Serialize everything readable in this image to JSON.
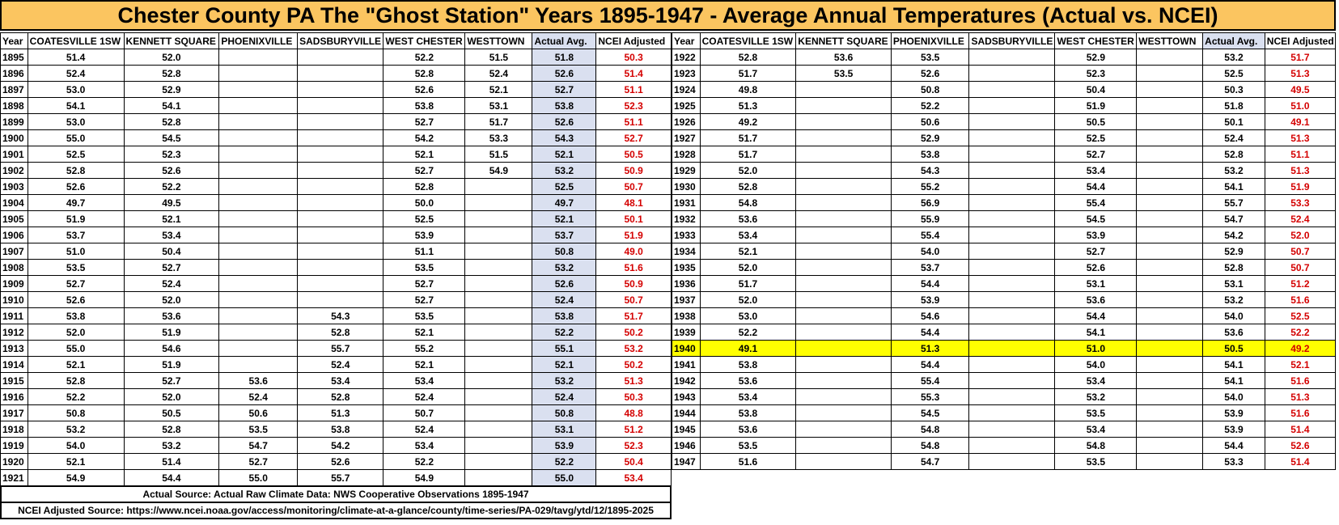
{
  "title": "Chester County PA The \"Ghost Station\" Years 1895-1947 - Average Annual Temperatures (Actual vs. NCEI)",
  "headers": [
    "Year",
    "COATESVILLE 1SW",
    "KENNETT SQUARE",
    "PHOENIXVILLE",
    "SADSBURYVILLE",
    "WEST CHESTER",
    "WESTTOWN",
    "Actual Avg.",
    "NCEI Adjusted"
  ],
  "left_rows": [
    [
      "1895",
      "51.4",
      "52.0",
      "",
      "",
      "52.2",
      "51.5",
      "51.8",
      "50.3"
    ],
    [
      "1896",
      "52.4",
      "52.8",
      "",
      "",
      "52.8",
      "52.4",
      "52.6",
      "51.4"
    ],
    [
      "1897",
      "53.0",
      "52.9",
      "",
      "",
      "52.6",
      "52.1",
      "52.7",
      "51.1"
    ],
    [
      "1898",
      "54.1",
      "54.1",
      "",
      "",
      "53.8",
      "53.1",
      "53.8",
      "52.3"
    ],
    [
      "1899",
      "53.0",
      "52.8",
      "",
      "",
      "52.7",
      "51.7",
      "52.6",
      "51.1"
    ],
    [
      "1900",
      "55.0",
      "54.5",
      "",
      "",
      "54.2",
      "53.3",
      "54.3",
      "52.7"
    ],
    [
      "1901",
      "52.5",
      "52.3",
      "",
      "",
      "52.1",
      "51.5",
      "52.1",
      "50.5"
    ],
    [
      "1902",
      "52.8",
      "52.6",
      "",
      "",
      "52.7",
      "54.9",
      "53.2",
      "50.9"
    ],
    [
      "1903",
      "52.6",
      "52.2",
      "",
      "",
      "52.8",
      "",
      "52.5",
      "50.7"
    ],
    [
      "1904",
      "49.7",
      "49.5",
      "",
      "",
      "50.0",
      "",
      "49.7",
      "48.1"
    ],
    [
      "1905",
      "51.9",
      "52.1",
      "",
      "",
      "52.5",
      "",
      "52.1",
      "50.1"
    ],
    [
      "1906",
      "53.7",
      "53.4",
      "",
      "",
      "53.9",
      "",
      "53.7",
      "51.9"
    ],
    [
      "1907",
      "51.0",
      "50.4",
      "",
      "",
      "51.1",
      "",
      "50.8",
      "49.0"
    ],
    [
      "1908",
      "53.5",
      "52.7",
      "",
      "",
      "53.5",
      "",
      "53.2",
      "51.6"
    ],
    [
      "1909",
      "52.7",
      "52.4",
      "",
      "",
      "52.7",
      "",
      "52.6",
      "50.9"
    ],
    [
      "1910",
      "52.6",
      "52.0",
      "",
      "",
      "52.7",
      "",
      "52.4",
      "50.7"
    ],
    [
      "1911",
      "53.8",
      "53.6",
      "",
      "54.3",
      "53.5",
      "",
      "53.8",
      "51.7"
    ],
    [
      "1912",
      "52.0",
      "51.9",
      "",
      "52.8",
      "52.1",
      "",
      "52.2",
      "50.2"
    ],
    [
      "1913",
      "55.0",
      "54.6",
      "",
      "55.7",
      "55.2",
      "",
      "55.1",
      "53.2"
    ],
    [
      "1914",
      "52.1",
      "51.9",
      "",
      "52.4",
      "52.1",
      "",
      "52.1",
      "50.2"
    ],
    [
      "1915",
      "52.8",
      "52.7",
      "53.6",
      "53.4",
      "53.4",
      "",
      "53.2",
      "51.3"
    ],
    [
      "1916",
      "52.2",
      "52.0",
      "52.4",
      "52.8",
      "52.4",
      "",
      "52.4",
      "50.3"
    ],
    [
      "1917",
      "50.8",
      "50.5",
      "50.6",
      "51.3",
      "50.7",
      "",
      "50.8",
      "48.8"
    ],
    [
      "1918",
      "53.2",
      "52.8",
      "53.5",
      "53.8",
      "52.4",
      "",
      "53.1",
      "51.2"
    ],
    [
      "1919",
      "54.0",
      "53.2",
      "54.7",
      "54.2",
      "53.4",
      "",
      "53.9",
      "52.3"
    ],
    [
      "1920",
      "52.1",
      "51.4",
      "52.7",
      "52.6",
      "52.2",
      "",
      "52.2",
      "50.4"
    ],
    [
      "1921",
      "54.9",
      "54.4",
      "55.0",
      "55.7",
      "54.9",
      "",
      "55.0",
      "53.4"
    ]
  ],
  "right_rows": [
    [
      "1922",
      "52.8",
      "53.6",
      "53.5",
      "",
      "52.9",
      "",
      "53.2",
      "51.7"
    ],
    [
      "1923",
      "51.7",
      "53.5",
      "52.6",
      "",
      "52.3",
      "",
      "52.5",
      "51.3"
    ],
    [
      "1924",
      "49.8",
      "",
      "50.8",
      "",
      "50.4",
      "",
      "50.3",
      "49.5"
    ],
    [
      "1925",
      "51.3",
      "",
      "52.2",
      "",
      "51.9",
      "",
      "51.8",
      "51.0"
    ],
    [
      "1926",
      "49.2",
      "",
      "50.6",
      "",
      "50.5",
      "",
      "50.1",
      "49.1"
    ],
    [
      "1927",
      "51.7",
      "",
      "52.9",
      "",
      "52.5",
      "",
      "52.4",
      "51.3"
    ],
    [
      "1928",
      "51.7",
      "",
      "53.8",
      "",
      "52.7",
      "",
      "52.8",
      "51.1"
    ],
    [
      "1929",
      "52.0",
      "",
      "54.3",
      "",
      "53.4",
      "",
      "53.2",
      "51.3"
    ],
    [
      "1930",
      "52.8",
      "",
      "55.2",
      "",
      "54.4",
      "",
      "54.1",
      "51.9"
    ],
    [
      "1931",
      "54.8",
      "",
      "56.9",
      "",
      "55.4",
      "",
      "55.7",
      "53.3"
    ],
    [
      "1932",
      "53.6",
      "",
      "55.9",
      "",
      "54.5",
      "",
      "54.7",
      "52.4"
    ],
    [
      "1933",
      "53.4",
      "",
      "55.4",
      "",
      "53.9",
      "",
      "54.2",
      "52.0"
    ],
    [
      "1934",
      "52.1",
      "",
      "54.0",
      "",
      "52.7",
      "",
      "52.9",
      "50.7"
    ],
    [
      "1935",
      "52.0",
      "",
      "53.7",
      "",
      "52.6",
      "",
      "52.8",
      "50.7"
    ],
    [
      "1936",
      "51.7",
      "",
      "54.4",
      "",
      "53.1",
      "",
      "53.1",
      "51.2"
    ],
    [
      "1937",
      "52.0",
      "",
      "53.9",
      "",
      "53.6",
      "",
      "53.2",
      "51.6"
    ],
    [
      "1938",
      "53.0",
      "",
      "54.6",
      "",
      "54.4",
      "",
      "54.0",
      "52.5"
    ],
    [
      "1939",
      "52.2",
      "",
      "54.4",
      "",
      "54.1",
      "",
      "53.6",
      "52.2"
    ],
    [
      "1940",
      "49.1",
      "",
      "51.3",
      "",
      "51.0",
      "",
      "50.5",
      "49.2"
    ],
    [
      "1941",
      "53.8",
      "",
      "54.4",
      "",
      "54.0",
      "",
      "54.1",
      "52.1"
    ],
    [
      "1942",
      "53.6",
      "",
      "55.4",
      "",
      "53.4",
      "",
      "54.1",
      "51.6"
    ],
    [
      "1943",
      "53.4",
      "",
      "55.3",
      "",
      "53.2",
      "",
      "54.0",
      "51.3"
    ],
    [
      "1944",
      "53.8",
      "",
      "54.5",
      "",
      "53.5",
      "",
      "53.9",
      "51.6"
    ],
    [
      "1945",
      "53.6",
      "",
      "54.8",
      "",
      "53.4",
      "",
      "53.9",
      "51.4"
    ],
    [
      "1946",
      "53.5",
      "",
      "54.8",
      "",
      "54.8",
      "",
      "54.4",
      "52.6"
    ],
    [
      "1947",
      "51.6",
      "",
      "54.7",
      "",
      "53.5",
      "",
      "53.3",
      "51.4"
    ]
  ],
  "highlight_year": "1940",
  "sources": {
    "actual": "Actual Source: Actual Raw Climate Data: NWS Cooperative Observations 1895-1947",
    "ncei": "NCEI Adjusted Source: https://www.ncei.noaa.gov/access/monitoring/climate-at-a-glance/county/time-series/PA-029/tavg/ytd/12/1895-2025"
  },
  "colors": {
    "title_bg": "#fbc560",
    "actual_bg": "#dae0f0",
    "ncei_text": "#d40000",
    "highlight": "#ffff00"
  }
}
